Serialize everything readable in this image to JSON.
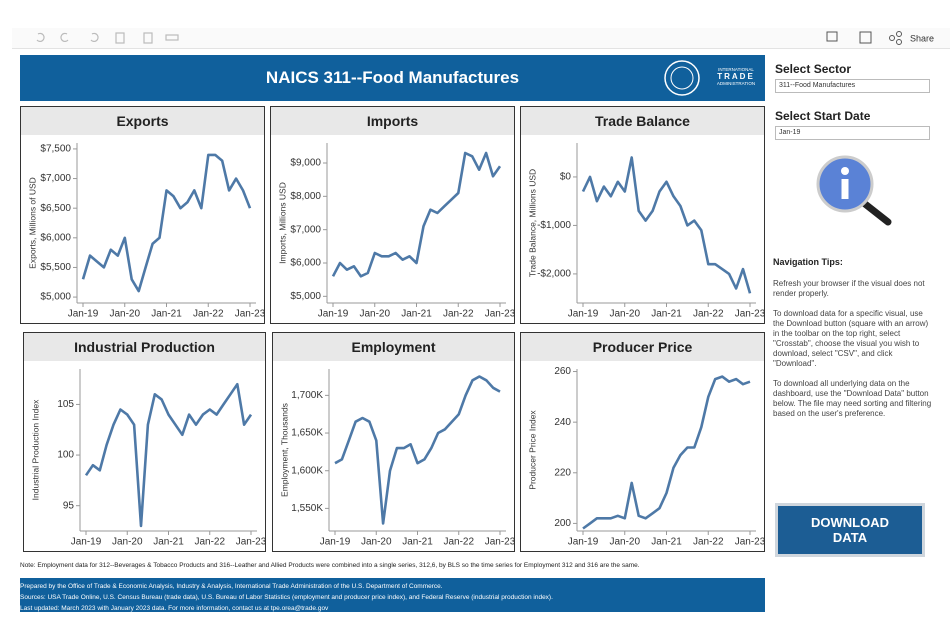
{
  "toolbar": {
    "share": "Share"
  },
  "header": {
    "title": "NAICS 311--Food Manufactures",
    "logo": [
      "INTERNATIONAL",
      "TRADE",
      "ADMINISTRATION"
    ]
  },
  "sidebar": {
    "sector_label": "Select Sector",
    "sector_value": "311--Food Manufactures",
    "date_label": "Select Start Date",
    "date_value": "Jan-19",
    "tips_title": "Navigation Tips:",
    "tips": [
      "Refresh your browser if the visual does not render properly.",
      "To download data for a specific visual, use the Download button (square with an arrow) in the toolbar on the top right, select \"Crosstab\", choose the visual you wish to download, select \"CSV\", and click \"Download\".",
      "To download all underlying data on the dashboard, use the \"Download Data\" button below. The file may need sorting and filtering based on the user's preference."
    ],
    "button": "DOWNLOAD DATA"
  },
  "note": "Note: Employment data for 312--Beverages & Tobacco Products and 316--Leather and Allied Products were combined into a single series, 312,6, by BLS so the time series for Employment 312 and 316 are the same.",
  "footer": [
    "Prepared by the Office of Trade & Economic Analysis, Industry & Analysis, International Trade Administration of the U.S. Department of Commerce.",
    "Sources: USA Trade Online, U.S. Census Bureau (trade data), U.S. Bureau of Labor Statistics (employment and producer price index), and Federal Reserve (industrial production index).",
    "Last updated: March 2023 with January 2023 data. For more information, contact us at tpe.orea@trade.gov"
  ],
  "chart_data": [
    {
      "type": "line",
      "title": "Exports",
      "y_label": "Exports, Millions of USD",
      "color": "#4e79a7",
      "categories": [
        "Jan-19",
        "Mar-19",
        "May-19",
        "Jul-19",
        "Sep-19",
        "Nov-19",
        "Jan-20",
        "Mar-20",
        "May-20",
        "Jul-20",
        "Sep-20",
        "Nov-20",
        "Jan-21",
        "Mar-21",
        "May-21",
        "Jul-21",
        "Sep-21",
        "Nov-21",
        "Jan-22",
        "Mar-22",
        "May-22",
        "Jul-22",
        "Sep-22",
        "Nov-22",
        "Jan-23"
      ],
      "xticks": [
        "Jan-19",
        "Jan-20",
        "Jan-21",
        "Jan-22",
        "Jan-23"
      ],
      "values": [
        5300,
        5700,
        5600,
        5500,
        5800,
        5700,
        6000,
        5300,
        5100,
        5500,
        5900,
        6000,
        6800,
        6700,
        6500,
        6600,
        6800,
        6500,
        7400,
        7400,
        7300,
        6800,
        7000,
        6800,
        6500
      ],
      "ylim": [
        4900,
        7600
      ],
      "yticks": [
        {
          "value": 5000,
          "label": "$5,000"
        },
        {
          "value": 5500,
          "label": "$5,500"
        },
        {
          "value": 6000,
          "label": "$6,000"
        },
        {
          "value": 6500,
          "label": "$6,500"
        },
        {
          "value": 7000,
          "label": "$7,000"
        },
        {
          "value": 7500,
          "label": "$7,500"
        }
      ]
    },
    {
      "type": "line",
      "title": "Imports",
      "y_label": "Imports, Millions USD",
      "color": "#4e79a7",
      "categories": [
        "Jan-19",
        "Mar-19",
        "May-19",
        "Jul-19",
        "Sep-19",
        "Nov-19",
        "Jan-20",
        "Mar-20",
        "May-20",
        "Jul-20",
        "Sep-20",
        "Nov-20",
        "Jan-21",
        "Mar-21",
        "May-21",
        "Jul-21",
        "Sep-21",
        "Nov-21",
        "Jan-22",
        "Mar-22",
        "May-22",
        "Jul-22",
        "Sep-22",
        "Nov-22",
        "Jan-23"
      ],
      "xticks": [
        "Jan-19",
        "Jan-20",
        "Jan-21",
        "Jan-22",
        "Jan-23"
      ],
      "values": [
        5600,
        6000,
        5800,
        5900,
        5600,
        5700,
        6300,
        6200,
        6200,
        6300,
        6100,
        6200,
        6000,
        7100,
        7600,
        7500,
        7700,
        7900,
        8100,
        9300,
        9200,
        8800,
        9300,
        8600,
        8900
      ],
      "ylim": [
        4800,
        9600
      ],
      "yticks": [
        {
          "value": 5000,
          "label": "$5,000"
        },
        {
          "value": 6000,
          "label": "$6,000"
        },
        {
          "value": 7000,
          "label": "$7,000"
        },
        {
          "value": 8000,
          "label": "$8,000"
        },
        {
          "value": 9000,
          "label": "$9,000"
        }
      ]
    },
    {
      "type": "line",
      "title": "Trade Balance",
      "y_label": "Trade Balance, Millions USD",
      "color": "#4e79a7",
      "categories": [
        "Jan-19",
        "Mar-19",
        "May-19",
        "Jul-19",
        "Sep-19",
        "Nov-19",
        "Jan-20",
        "Mar-20",
        "May-20",
        "Jul-20",
        "Sep-20",
        "Nov-20",
        "Jan-21",
        "Mar-21",
        "May-21",
        "Jul-21",
        "Sep-21",
        "Nov-21",
        "Jan-22",
        "Mar-22",
        "May-22",
        "Jul-22",
        "Sep-22",
        "Nov-22",
        "Jan-23"
      ],
      "xticks": [
        "Jan-19",
        "Jan-20",
        "Jan-21",
        "Jan-22",
        "Jan-23"
      ],
      "values": [
        -300,
        0,
        -500,
        -200,
        -400,
        -100,
        -300,
        400,
        -700,
        -900,
        -700,
        -300,
        -100,
        -400,
        -600,
        -1000,
        -900,
        -1100,
        -1800,
        -1800,
        -1900,
        -2000,
        -2300,
        -1900,
        -2400
      ],
      "ylim": [
        -2600,
        700
      ],
      "yticks": [
        {
          "value": -2000,
          "label": "-$2,000"
        },
        {
          "value": -1000,
          "label": "-$1,000"
        },
        {
          "value": 0,
          "label": "$0"
        }
      ]
    },
    {
      "type": "line",
      "title": "Industrial Production",
      "y_label": "Industrial Production Index",
      "color": "#4e79a7",
      "categories": [
        "Jan-19",
        "Mar-19",
        "May-19",
        "Jul-19",
        "Sep-19",
        "Nov-19",
        "Jan-20",
        "Mar-20",
        "May-20",
        "Jul-20",
        "Sep-20",
        "Nov-20",
        "Jan-21",
        "Mar-21",
        "May-21",
        "Jul-21",
        "Sep-21",
        "Nov-21",
        "Jan-22",
        "Mar-22",
        "May-22",
        "Jul-22",
        "Sep-22",
        "Nov-22",
        "Jan-23"
      ],
      "xticks": [
        "Jan-19",
        "Jan-20",
        "Jan-21",
        "Jan-22",
        "Jan-23"
      ],
      "values": [
        98,
        99,
        98.5,
        101,
        103,
        104.5,
        104,
        103,
        93,
        103,
        106,
        105.5,
        104,
        103,
        102,
        104,
        103,
        104,
        104.5,
        104,
        105,
        106,
        107,
        103,
        104
      ],
      "ylim": [
        92.5,
        108.5
      ],
      "yticks": [
        95,
        100,
        105
      ]
    },
    {
      "type": "line",
      "title": "Employment",
      "y_label": "Employment, Thousands",
      "color": "#4e79a7",
      "categories": [
        "Jan-19",
        "Mar-19",
        "May-19",
        "Jul-19",
        "Sep-19",
        "Nov-19",
        "Jan-20",
        "Mar-20",
        "May-20",
        "Jul-20",
        "Sep-20",
        "Nov-20",
        "Jan-21",
        "Mar-21",
        "May-21",
        "Jul-21",
        "Sep-21",
        "Nov-21",
        "Jan-22",
        "Mar-22",
        "May-22",
        "Jul-22",
        "Sep-22",
        "Nov-22",
        "Jan-23"
      ],
      "xticks": [
        "Jan-19",
        "Jan-20",
        "Jan-21",
        "Jan-22",
        "Jan-23"
      ],
      "values": [
        1610,
        1615,
        1640,
        1665,
        1670,
        1665,
        1640,
        1530,
        1600,
        1630,
        1630,
        1635,
        1610,
        1615,
        1630,
        1650,
        1655,
        1665,
        1675,
        1700,
        1720,
        1725,
        1720,
        1710,
        1705
      ],
      "ylim": [
        1520,
        1735
      ],
      "yticks": [
        {
          "value": 1550,
          "label": "1,550K"
        },
        {
          "value": 1600,
          "label": "1,600K"
        },
        {
          "value": 1650,
          "label": "1,650K"
        },
        {
          "value": 1700,
          "label": "1,700K"
        }
      ]
    },
    {
      "type": "line",
      "title": "Producer Price",
      "y_label": "Producer Price Index",
      "color": "#4e79a7",
      "categories": [
        "Jan-19",
        "Mar-19",
        "May-19",
        "Jul-19",
        "Sep-19",
        "Nov-19",
        "Jan-20",
        "Mar-20",
        "May-20",
        "Jul-20",
        "Sep-20",
        "Nov-20",
        "Jan-21",
        "Mar-21",
        "May-21",
        "Jul-21",
        "Sep-21",
        "Nov-21",
        "Jan-22",
        "Mar-22",
        "May-22",
        "Jul-22",
        "Sep-22",
        "Nov-22",
        "Jan-23"
      ],
      "xticks": [
        "Jan-19",
        "Jan-20",
        "Jan-21",
        "Jan-22",
        "Jan-23"
      ],
      "values": [
        198,
        200,
        202,
        202,
        202,
        203,
        202,
        216,
        203,
        202,
        204,
        206,
        212,
        222,
        227,
        230,
        230,
        238,
        250,
        257,
        258,
        256,
        257,
        255,
        256
      ],
      "ylim": [
        197,
        261
      ],
      "yticks": [
        200,
        220,
        240,
        260
      ]
    }
  ]
}
